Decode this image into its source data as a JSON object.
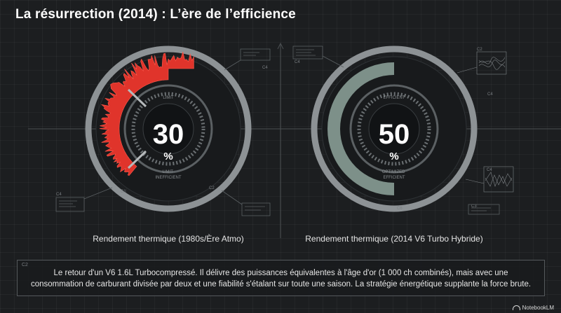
{
  "title": "La résurrection (2014) : L’ère de l’efficience",
  "gauges": [
    {
      "value": 30,
      "value_text": "30",
      "unit": "%",
      "label": "Rendement thermique (1980s/Ère Atmo)",
      "inner_top": "LIMIT",
      "inner_bottom": "LIMIT\nINEFFICIENT",
      "tags": [
        "C4",
        "C1",
        "C2",
        "C4"
      ],
      "accent": "#e0342b"
    },
    {
      "value": 50,
      "value_text": "50",
      "unit": "%",
      "label": "Rendement thermique (2014 V6 Turbo Hybride)",
      "inner_top": "EFFICIENT",
      "inner_bottom": "OPTIMIZED\nEFFICIENT",
      "tags": [
        "C4",
        "C6",
        "C2",
        "C4",
        "C3",
        "C4"
      ],
      "accent": "#7d9089"
    }
  ],
  "caption": {
    "tag": "C2",
    "text": "Le retour d'un V6 1.6L Turbocompressé. Il délivre des puissances équivalentes à l'âge d'or (1 000 ch combinés), mais avec une consommation de carburant divisée par deux et une fiabilité s'étalant sur toute une saison. La stratégie énergétique supplante la force brute."
  },
  "brand": "NotebookLM",
  "colors": {
    "background": "#1c1e20",
    "ring": "#9ea3a6",
    "red_accent": "#e0342b",
    "green_accent": "#7d9089"
  }
}
